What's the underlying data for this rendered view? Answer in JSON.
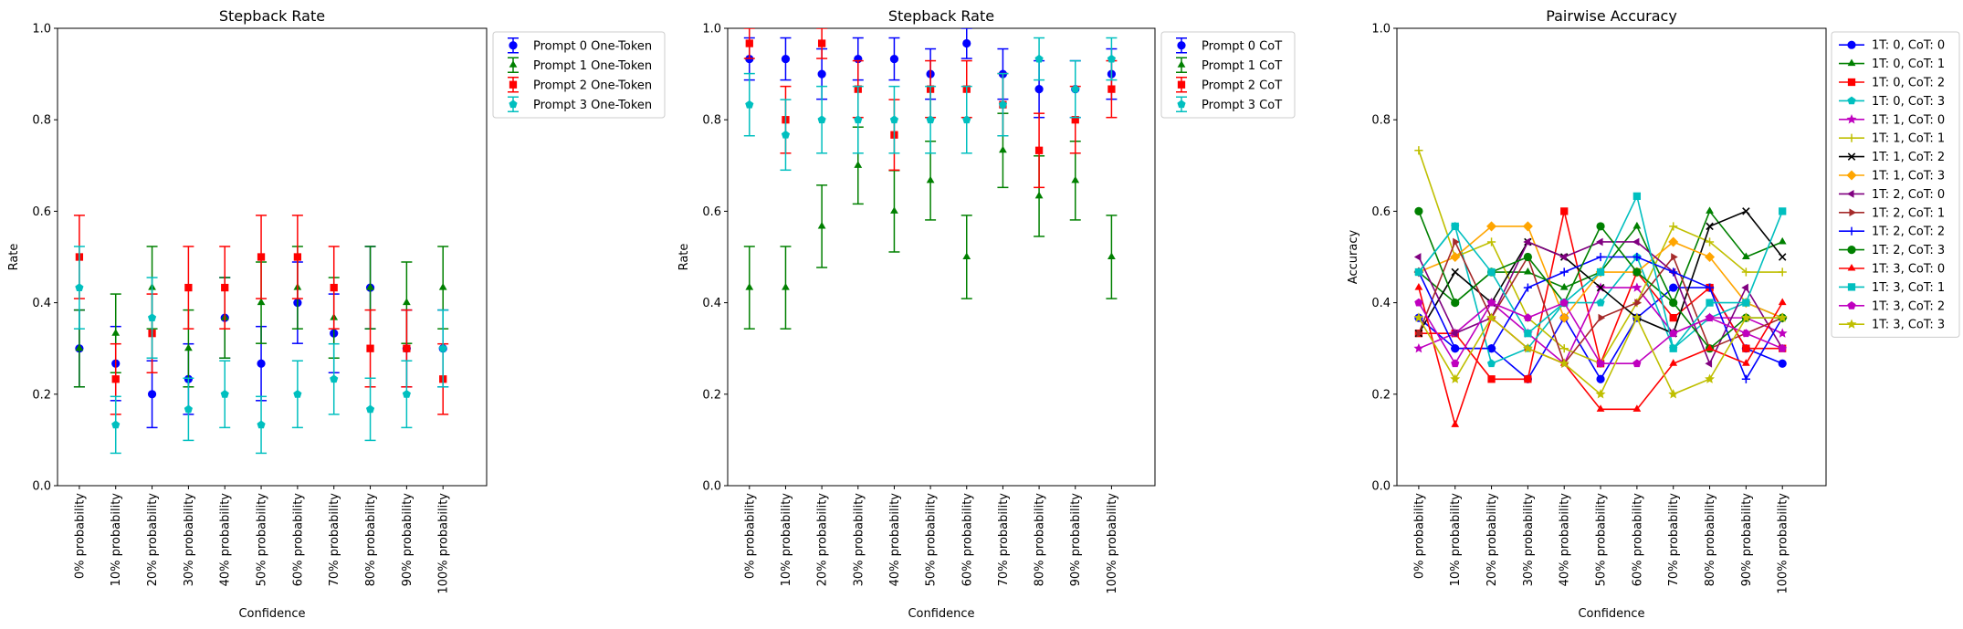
{
  "chart_data": [
    {
      "type": "scatter",
      "title": "Stepback Rate",
      "xlabel": "Confidence",
      "ylabel": "Rate",
      "ylim": [
        0,
        1
      ],
      "yticks": [
        "0.0",
        "0.2",
        "0.4",
        "0.6",
        "0.8",
        "1.0"
      ],
      "categories": [
        "0% probability",
        "10% probability",
        "20% probability",
        "30% probability",
        "40% probability",
        "50% probability",
        "60% probability",
        "70% probability",
        "80% probability",
        "90% probability",
        "100% probability"
      ],
      "legend_position": "outside-top-right",
      "error_bars": true,
      "series": [
        {
          "name": "Prompt 0 One-Token",
          "color": "#0000ff",
          "marker": "circle",
          "values": [
            0.3,
            0.267,
            0.2,
            0.233,
            0.367,
            0.267,
            0.4,
            0.333,
            0.433,
            0.3,
            0.3
          ],
          "err": [
            0.084,
            0.081,
            0.073,
            0.077,
            0.088,
            0.081,
            0.089,
            0.086,
            0.09,
            0.084,
            0.084
          ]
        },
        {
          "name": "Prompt 1 One-Token",
          "color": "#008000",
          "marker": "triangle",
          "values": [
            0.3,
            0.333,
            0.433,
            0.3,
            0.367,
            0.4,
            0.433,
            0.367,
            0.433,
            0.4,
            0.433
          ],
          "err": [
            0.084,
            0.086,
            0.09,
            0.084,
            0.088,
            0.089,
            0.09,
            0.088,
            0.09,
            0.089,
            0.09
          ]
        },
        {
          "name": "Prompt 2 One-Token",
          "color": "#ff0000",
          "marker": "square",
          "values": [
            0.5,
            0.233,
            0.333,
            0.433,
            0.433,
            0.5,
            0.5,
            0.433,
            0.3,
            0.3,
            0.233
          ],
          "err": [
            0.091,
            0.077,
            0.086,
            0.09,
            0.09,
            0.091,
            0.091,
            0.09,
            0.084,
            0.084,
            0.077
          ]
        },
        {
          "name": "Prompt 3 One-Token",
          "color": "#00bfbf",
          "marker": "pentagon",
          "values": [
            0.433,
            0.133,
            0.367,
            0.167,
            0.2,
            0.133,
            0.2,
            0.233,
            0.167,
            0.2,
            0.3
          ],
          "err": [
            0.09,
            0.062,
            0.088,
            0.068,
            0.073,
            0.062,
            0.073,
            0.077,
            0.068,
            0.073,
            0.084
          ]
        }
      ]
    },
    {
      "type": "scatter",
      "title": "Stepback Rate",
      "xlabel": "Confidence",
      "ylabel": "Rate",
      "ylim": [
        0,
        1
      ],
      "yticks": [
        "0.0",
        "0.2",
        "0.4",
        "0.6",
        "0.8",
        "1.0"
      ],
      "categories": [
        "0% probability",
        "10% probability",
        "20% probability",
        "30% probability",
        "40% probability",
        "50% probability",
        "60% probability",
        "70% probability",
        "80% probability",
        "90% probability",
        "100% probability"
      ],
      "legend_position": "outside-top-right",
      "error_bars": true,
      "series": [
        {
          "name": "Prompt 0 CoT",
          "color": "#0000ff",
          "marker": "circle",
          "values": [
            0.933,
            0.933,
            0.9,
            0.933,
            0.933,
            0.9,
            0.967,
            0.9,
            0.867,
            0.867,
            0.9
          ],
          "err": [
            0.046,
            0.046,
            0.055,
            0.046,
            0.046,
            0.055,
            0.033,
            0.055,
            0.062,
            0.062,
            0.055
          ]
        },
        {
          "name": "Prompt 1 CoT",
          "color": "#008000",
          "marker": "triangle",
          "values": [
            0.433,
            0.433,
            0.567,
            0.7,
            0.6,
            0.667,
            0.5,
            0.733,
            0.633,
            0.667,
            0.5
          ],
          "err": [
            0.09,
            0.09,
            0.09,
            0.084,
            0.089,
            0.086,
            0.091,
            0.081,
            0.088,
            0.086,
            0.091
          ]
        },
        {
          "name": "Prompt 2 CoT",
          "color": "#ff0000",
          "marker": "square",
          "values": [
            0.967,
            0.8,
            0.967,
            0.867,
            0.767,
            0.867,
            0.867,
            0.833,
            0.733,
            0.8,
            0.867
          ],
          "err": [
            0.033,
            0.073,
            0.033,
            0.062,
            0.077,
            0.062,
            0.062,
            0.068,
            0.081,
            0.073,
            0.062
          ]
        },
        {
          "name": "Prompt 3 CoT",
          "color": "#00bfbf",
          "marker": "pentagon",
          "values": [
            0.833,
            0.767,
            0.8,
            0.8,
            0.8,
            0.8,
            0.8,
            0.833,
            0.933,
            0.867,
            0.933
          ],
          "err": [
            0.068,
            0.077,
            0.073,
            0.073,
            0.073,
            0.073,
            0.073,
            0.068,
            0.046,
            0.062,
            0.046
          ]
        }
      ]
    },
    {
      "type": "line",
      "title": "Pairwise Accuracy",
      "xlabel": "Confidence",
      "ylabel": "Accuracy",
      "ylim": [
        0,
        1
      ],
      "yticks": [
        "0.0",
        "0.2",
        "0.4",
        "0.6",
        "0.8",
        "1.0"
      ],
      "categories": [
        "0% probability",
        "10% probability",
        "20% probability",
        "30% probability",
        "40% probability",
        "50% probability",
        "60% probability",
        "70% probability",
        "80% probability",
        "90% probability",
        "100% probability"
      ],
      "legend_position": "outside-top-right",
      "series": [
        {
          "name": "1T: 0, CoT: 0",
          "color": "#0000ff",
          "marker": "circle",
          "values": [
            0.367,
            0.3,
            0.3,
            0.233,
            0.367,
            0.233,
            0.367,
            0.433,
            0.433,
            0.3,
            0.267
          ]
        },
        {
          "name": "1T: 0, CoT: 1",
          "color": "#008000",
          "marker": "triangle",
          "values": [
            0.467,
            0.4,
            0.467,
            0.467,
            0.433,
            0.467,
            0.567,
            0.4,
            0.6,
            0.5,
            0.533
          ]
        },
        {
          "name": "1T: 0, CoT: 2",
          "color": "#ff0000",
          "marker": "square",
          "values": [
            0.333,
            0.333,
            0.233,
            0.233,
            0.6,
            0.267,
            0.467,
            0.367,
            0.433,
            0.3,
            0.3
          ]
        },
        {
          "name": "1T: 0, CoT: 3",
          "color": "#00bfbf",
          "marker": "pentagon",
          "values": [
            0.467,
            0.567,
            0.267,
            0.3,
            0.4,
            0.4,
            0.5,
            0.3,
            0.367,
            0.4,
            0.367
          ]
        },
        {
          "name": "1T: 1, CoT: 0",
          "color": "#bf00bf",
          "marker": "star",
          "values": [
            0.3,
            0.333,
            0.4,
            0.333,
            0.267,
            0.433,
            0.433,
            0.333,
            0.367,
            0.367,
            0.333
          ]
        },
        {
          "name": "1T: 1, CoT: 1",
          "color": "#bfbf00",
          "marker": "plus",
          "values": [
            0.733,
            0.5,
            0.533,
            0.367,
            0.3,
            0.267,
            0.4,
            0.567,
            0.533,
            0.467,
            0.467
          ]
        },
        {
          "name": "1T: 1, CoT: 2",
          "color": "#000000",
          "marker": "x",
          "values": [
            0.333,
            0.467,
            0.4,
            0.533,
            0.5,
            0.433,
            0.367,
            0.333,
            0.567,
            0.6,
            0.5
          ]
        },
        {
          "name": "1T: 1, CoT: 3",
          "color": "#ffa500",
          "marker": "diamond",
          "values": [
            0.467,
            0.5,
            0.567,
            0.567,
            0.367,
            0.467,
            0.467,
            0.533,
            0.5,
            0.4,
            0.367
          ]
        },
        {
          "name": "1T: 2, CoT: 0",
          "color": "#800080",
          "marker": "triangle-left",
          "values": [
            0.5,
            0.333,
            0.367,
            0.533,
            0.5,
            0.533,
            0.533,
            0.467,
            0.267,
            0.433,
            0.3
          ]
        },
        {
          "name": "1T: 2, CoT: 1",
          "color": "#a52a2a",
          "marker": "triangle-right",
          "values": [
            0.333,
            0.533,
            0.367,
            0.5,
            0.267,
            0.367,
            0.4,
            0.5,
            0.3,
            0.333,
            0.367
          ]
        },
        {
          "name": "1T: 2, CoT: 2",
          "color": "#0000ff",
          "marker": "plus",
          "values": [
            0.467,
            0.3,
            0.3,
            0.433,
            0.467,
            0.5,
            0.5,
            0.467,
            0.433,
            0.233,
            0.367
          ]
        },
        {
          "name": "1T: 2, CoT: 3",
          "color": "#008000",
          "marker": "circle",
          "values": [
            0.6,
            0.4,
            0.467,
            0.5,
            0.4,
            0.567,
            0.467,
            0.4,
            0.3,
            0.367,
            0.367
          ]
        },
        {
          "name": "1T: 3, CoT: 0",
          "color": "#ff0000",
          "marker": "triangle",
          "values": [
            0.433,
            0.133,
            0.367,
            0.3,
            0.267,
            0.167,
            0.167,
            0.267,
            0.3,
            0.267,
            0.4
          ]
        },
        {
          "name": "1T: 3, CoT: 1",
          "color": "#00bfbf",
          "marker": "square",
          "values": [
            0.467,
            0.567,
            0.467,
            0.333,
            0.4,
            0.467,
            0.633,
            0.3,
            0.4,
            0.4,
            0.6
          ]
        },
        {
          "name": "1T: 3, CoT: 2",
          "color": "#bf00bf",
          "marker": "pentagon",
          "values": [
            0.4,
            0.267,
            0.4,
            0.367,
            0.4,
            0.267,
            0.267,
            0.333,
            0.367,
            0.333,
            0.3
          ]
        },
        {
          "name": "1T: 3, CoT: 3",
          "color": "#bfbf00",
          "marker": "star",
          "values": [
            0.367,
            0.233,
            0.367,
            0.3,
            0.267,
            0.2,
            0.367,
            0.2,
            0.233,
            0.367,
            0.367
          ]
        }
      ]
    }
  ]
}
